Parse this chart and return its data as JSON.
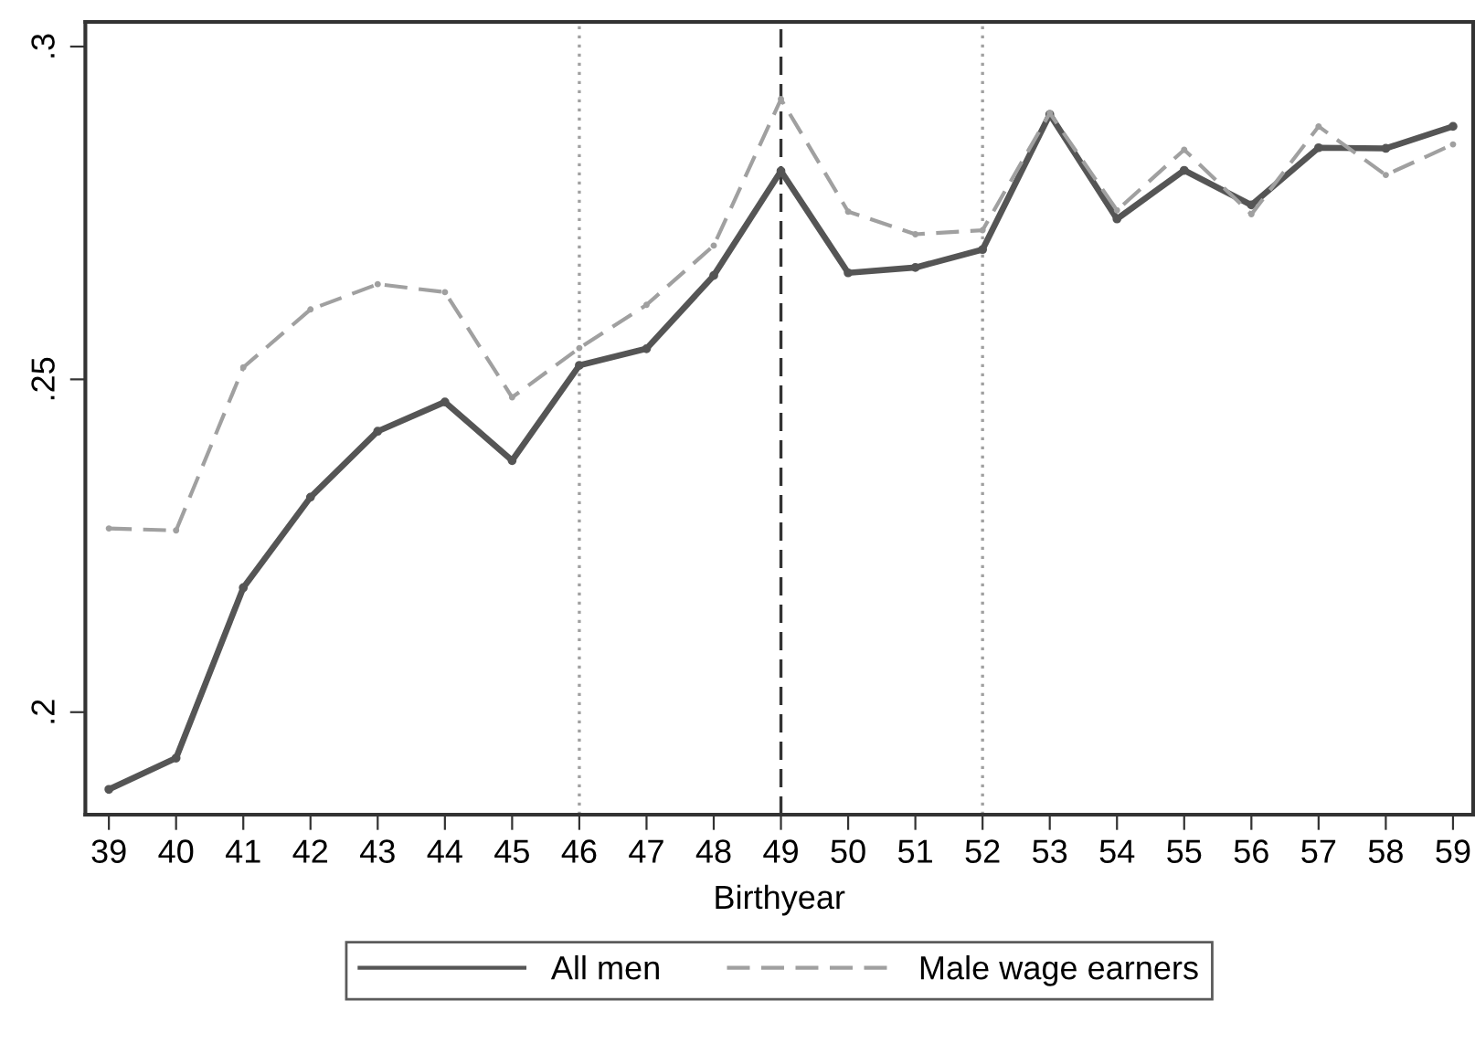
{
  "chart_data": {
    "type": "line",
    "xlabel": "Birthyear",
    "x": [
      39,
      40,
      41,
      42,
      43,
      44,
      45,
      46,
      47,
      48,
      49,
      50,
      51,
      52,
      53,
      54,
      55,
      56,
      57,
      58,
      59
    ],
    "series": [
      {
        "name": "All men",
        "color": "#555555",
        "line_style": "solid",
        "values": [
          0.1884,
          0.1931,
          0.2187,
          0.2323,
          0.2422,
          0.2466,
          0.2378,
          0.2521,
          0.2546,
          0.2656,
          0.2813,
          0.266,
          0.2668,
          0.2695,
          0.2898,
          0.2741,
          0.2814,
          0.2762,
          0.2848,
          0.2847,
          0.288
        ]
      },
      {
        "name": "Male wage earners",
        "color": "#a0a0a0",
        "line_style": "dashed",
        "values": [
          0.2276,
          0.2273,
          0.2518,
          0.2605,
          0.2643,
          0.2631,
          0.2473,
          0.2547,
          0.2612,
          0.2701,
          0.2921,
          0.2752,
          0.2718,
          0.2724,
          0.29,
          0.2754,
          0.2845,
          0.2748,
          0.288,
          0.2807,
          0.2853
        ]
      }
    ],
    "xlim": [
      38.65,
      59.3
    ],
    "xticks": [
      39,
      40,
      41,
      42,
      43,
      44,
      45,
      46,
      47,
      48,
      49,
      50,
      51,
      52,
      53,
      54,
      55,
      56,
      57,
      58,
      59
    ],
    "ylim": [
      0.1846,
      0.3037
    ],
    "yticks": [
      {
        "value": 0.2,
        "label": ".2"
      },
      {
        "value": 0.25,
        "label": ".25"
      },
      {
        "value": 0.3,
        "label": ".3"
      }
    ],
    "ref_lines": [
      {
        "axis": "x",
        "value": 46,
        "color": "#a0a0a0",
        "line_style": "dotted"
      },
      {
        "axis": "x",
        "value": 49,
        "color": "#333333",
        "line_style": "dashed"
      },
      {
        "axis": "x",
        "value": 52,
        "color": "#a0a0a0",
        "line_style": "dotted"
      }
    ],
    "marker": "circle",
    "grid": false,
    "legend": "bottom"
  }
}
